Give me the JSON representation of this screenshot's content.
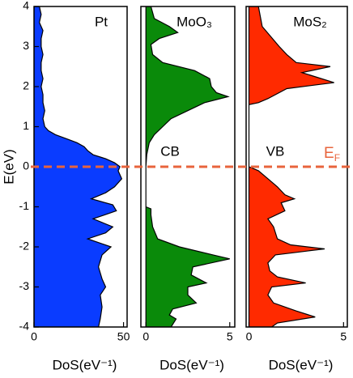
{
  "chart_data": [
    {
      "type": "horizontal-area",
      "title": "Pt",
      "color": "#0a3cff",
      "xlabel": "DoS(eV⁻¹)",
      "ylabel": "E(eV)",
      "ylim": [
        -4,
        4
      ],
      "yticks": [
        -4,
        -3,
        -2,
        -1,
        0,
        1,
        2,
        3,
        4
      ],
      "xlim": [
        0,
        52
      ],
      "xticks": [
        0,
        50
      ],
      "fermi_level": 0,
      "fermi_color": "#e8643c",
      "y": [
        4,
        3.8,
        3.6,
        3.4,
        3.2,
        3,
        2.8,
        2.6,
        2.4,
        2.2,
        2,
        1.8,
        1.6,
        1.4,
        1.2,
        1,
        0.9,
        0.8,
        0.7,
        0.6,
        0.5,
        0.4,
        0.3,
        0.2,
        0.1,
        0,
        -0.1,
        -0.3,
        -0.5,
        -0.65,
        -0.8,
        -0.95,
        -1.1,
        -1.3,
        -1.5,
        -1.65,
        -1.8,
        -2,
        -2.2,
        -2.5,
        -2.8,
        -3,
        -3.2,
        -3.5,
        -3.8,
        -4
      ],
      "values": [
        3,
        4,
        3,
        5,
        4,
        4,
        5,
        4,
        4,
        5,
        4,
        5,
        5,
        6,
        5,
        6,
        8,
        12,
        18,
        24,
        28,
        30,
        33,
        40,
        45,
        48,
        47,
        49,
        45,
        40,
        32,
        44,
        46,
        33,
        44,
        40,
        30,
        43,
        38,
        36,
        38,
        40,
        37,
        38,
        37,
        36
      ]
    },
    {
      "type": "horizontal-area",
      "title": "MoO₃",
      "color": "#0a8a0a",
      "xlabel": "DoS(eV⁻¹)",
      "ylim": [
        -4,
        4
      ],
      "xlim": [
        -0.3,
        5.3
      ],
      "xticks": [
        0,
        5
      ],
      "annotation": "CB",
      "y": [
        4,
        3.7,
        3.5,
        3.35,
        3.2,
        3.05,
        2.8,
        2.6,
        2.4,
        2.2,
        2,
        1.85,
        1.75,
        1.6,
        1.4,
        1.2,
        1,
        0.8,
        0.6,
        0.3,
        0,
        -0.5,
        -1,
        -1.05,
        -1.2,
        -1.5,
        -1.8,
        -2,
        -2.2,
        -2.3,
        -2.5,
        -2.7,
        -2.9,
        -3,
        -3.2,
        -3.4,
        -3.55,
        -3.7,
        -3.8,
        -4
      ],
      "values": [
        0.3,
        0.5,
        1.4,
        1.9,
        0.8,
        0.3,
        0.4,
        1.0,
        2.9,
        3.8,
        3.9,
        4.2,
        4.9,
        3.5,
        2.5,
        1.5,
        1.0,
        0.5,
        0.2,
        0.05,
        0,
        0,
        0,
        0.3,
        0.3,
        0.4,
        0.7,
        2.0,
        4.0,
        5.0,
        2.8,
        2.7,
        3.6,
        2.5,
        2.5,
        3.0,
        1.6,
        1.4,
        1.8,
        1.5
      ]
    },
    {
      "type": "horizontal-area",
      "title": "MoS₂",
      "color": "#ff2a00",
      "xlabel": "DoS(eV⁻¹)",
      "ylim": [
        -4,
        4
      ],
      "xlim": [
        -0.15,
        5.2
      ],
      "xticks": [
        0,
        5
      ],
      "annotation": "VB",
      "fermi_label": {
        "main": "E",
        "sub": "F"
      },
      "y": [
        4,
        3.5,
        3,
        2.8,
        2.6,
        2.5,
        2.35,
        2.1,
        1.95,
        1.7,
        1.6,
        1.55,
        0.05,
        0,
        -0.1,
        -0.3,
        -0.5,
        -0.7,
        -0.8,
        -0.9,
        -1.1,
        -1.3,
        -1.5,
        -1.8,
        -1.95,
        -2.05,
        -2.2,
        -2.4,
        -2.6,
        -2.75,
        -2.9,
        -3,
        -3.2,
        -3.4,
        -3.6,
        -3.75,
        -3.9,
        -4
      ],
      "values": [
        0.5,
        0.7,
        1.6,
        2.0,
        2.5,
        4.3,
        2.8,
        4.5,
        2.0,
        1.0,
        0.5,
        0,
        0,
        0,
        0.5,
        1.0,
        1.5,
        1.9,
        2.4,
        1.7,
        1.9,
        1.0,
        1.3,
        1.5,
        2.2,
        4.0,
        1.4,
        1.0,
        1.1,
        1.5,
        3.0,
        1.2,
        1.0,
        1.3,
        2.5,
        3.5,
        1.5,
        1.2
      ]
    }
  ]
}
